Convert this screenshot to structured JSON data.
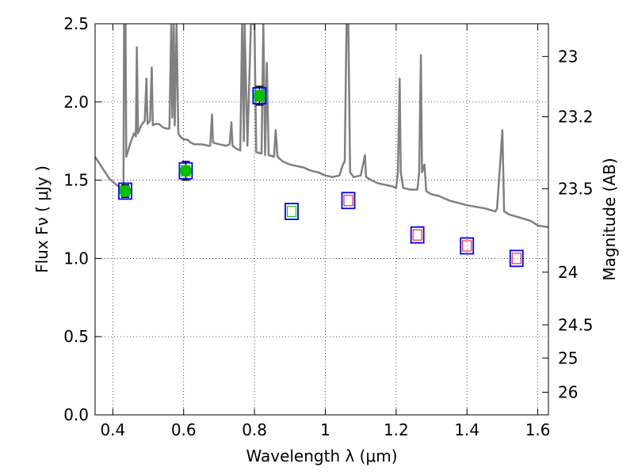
{
  "chart_data": {
    "type": "scatter",
    "title": "",
    "xlabel": "Wavelength  λ (μm)",
    "ylabel": "Flux  Fν  ( μJy )",
    "y2label": "Magnitude (AB)",
    "xlim": [
      0.35,
      1.63
    ],
    "ylim": [
      0,
      2.5
    ],
    "grid": true,
    "xticks": [
      0.4,
      0.6,
      0.8,
      1.0,
      1.2,
      1.4,
      1.6
    ],
    "xtick_labels": [
      "0.4",
      "0.6",
      "0.8",
      "1",
      "1.2",
      "1.4",
      "1.6"
    ],
    "yticks": [
      0.0,
      0.5,
      1.0,
      1.5,
      2.0,
      2.5
    ],
    "ytick_labels": [
      "0.0",
      "0.5",
      "1.0",
      "1.5",
      "2.0",
      "2.5"
    ],
    "y2ticks": [
      23,
      23.2,
      23.5,
      24,
      24.5,
      25,
      26
    ],
    "y2tick_labels": [
      "23",
      "23.2",
      "23.5",
      "24",
      "24.5",
      "25",
      "26"
    ],
    "colors": {
      "model": "#808080",
      "box": "#0000ff",
      "detection": "#00c000",
      "green_box": "#00c000",
      "red_box": "#ff0000",
      "grid": "#000000"
    },
    "model_spectrum": [
      [
        0.35,
        1.65
      ],
      [
        0.37,
        1.58
      ],
      [
        0.39,
        1.51
      ],
      [
        0.41,
        1.47
      ],
      [
        0.425,
        1.45
      ],
      [
        0.43,
        1.47
      ],
      [
        0.432,
        2.5
      ],
      [
        0.436,
        2.5
      ],
      [
        0.438,
        1.65
      ],
      [
        0.45,
        1.74
      ],
      [
        0.46,
        1.8
      ],
      [
        0.465,
        1.78
      ],
      [
        0.468,
        2.35
      ],
      [
        0.471,
        1.8
      ],
      [
        0.48,
        1.85
      ],
      [
        0.49,
        1.88
      ],
      [
        0.495,
        2.15
      ],
      [
        0.498,
        1.86
      ],
      [
        0.505,
        1.88
      ],
      [
        0.51,
        2.22
      ],
      [
        0.513,
        1.85
      ],
      [
        0.52,
        1.86
      ],
      [
        0.53,
        1.86
      ],
      [
        0.54,
        1.84
      ],
      [
        0.55,
        1.83
      ],
      [
        0.56,
        1.83
      ],
      [
        0.565,
        2.5
      ],
      [
        0.568,
        1.9
      ],
      [
        0.572,
        2.5
      ],
      [
        0.575,
        1.85
      ],
      [
        0.58,
        2.5
      ],
      [
        0.585,
        1.8
      ],
      [
        0.59,
        1.78
      ],
      [
        0.6,
        1.76
      ],
      [
        0.61,
        1.76
      ],
      [
        0.62,
        1.74
      ],
      [
        0.63,
        1.73
      ],
      [
        0.65,
        1.73
      ],
      [
        0.67,
        1.72
      ],
      [
        0.675,
        1.72
      ],
      [
        0.68,
        1.92
      ],
      [
        0.683,
        1.74
      ],
      [
        0.7,
        1.73
      ],
      [
        0.72,
        1.72
      ],
      [
        0.73,
        1.73
      ],
      [
        0.735,
        1.87
      ],
      [
        0.738,
        1.72
      ],
      [
        0.75,
        1.7
      ],
      [
        0.76,
        1.69
      ],
      [
        0.765,
        2.5
      ],
      [
        0.77,
        1.75
      ],
      [
        0.772,
        2.5
      ],
      [
        0.78,
        1.72
      ],
      [
        0.79,
        2.5
      ],
      [
        0.8,
        2.5
      ],
      [
        0.805,
        1.68
      ],
      [
        0.82,
        1.67
      ],
      [
        0.825,
        2.5
      ],
      [
        0.83,
        1.66
      ],
      [
        0.835,
        2.25
      ],
      [
        0.84,
        1.66
      ],
      [
        0.855,
        1.65
      ],
      [
        0.86,
        1.82
      ],
      [
        0.865,
        1.65
      ],
      [
        0.88,
        1.62
      ],
      [
        0.9,
        1.6
      ],
      [
        0.92,
        1.59
      ],
      [
        0.94,
        1.58
      ],
      [
        0.96,
        1.56
      ],
      [
        0.98,
        1.55
      ],
      [
        1.0,
        1.53
      ],
      [
        1.02,
        1.52
      ],
      [
        1.04,
        1.53
      ],
      [
        1.05,
        1.6
      ],
      [
        1.055,
        1.62
      ],
      [
        1.06,
        2.5
      ],
      [
        1.065,
        2.5
      ],
      [
        1.07,
        1.55
      ],
      [
        1.08,
        1.52
      ],
      [
        1.1,
        1.53
      ],
      [
        1.112,
        1.66
      ],
      [
        1.115,
        1.52
      ],
      [
        1.13,
        1.5
      ],
      [
        1.15,
        1.48
      ],
      [
        1.17,
        1.47
      ],
      [
        1.19,
        1.46
      ],
      [
        1.2,
        1.45
      ],
      [
        1.205,
        1.55
      ],
      [
        1.21,
        2.15
      ],
      [
        1.213,
        1.55
      ],
      [
        1.22,
        1.45
      ],
      [
        1.24,
        1.44
      ],
      [
        1.26,
        1.44
      ],
      [
        1.265,
        1.55
      ],
      [
        1.27,
        2.3
      ],
      [
        1.273,
        1.55
      ],
      [
        1.28,
        1.6
      ],
      [
        1.285,
        1.43
      ],
      [
        1.3,
        1.41
      ],
      [
        1.32,
        1.4
      ],
      [
        1.35,
        1.37
      ],
      [
        1.4,
        1.34
      ],
      [
        1.45,
        1.32
      ],
      [
        1.48,
        1.3
      ],
      [
        1.485,
        1.32
      ],
      [
        1.495,
        1.65
      ],
      [
        1.5,
        1.82
      ],
      [
        1.505,
        1.3
      ],
      [
        1.52,
        1.28
      ],
      [
        1.55,
        1.26
      ],
      [
        1.58,
        1.24
      ],
      [
        1.6,
        1.21
      ],
      [
        1.63,
        1.2
      ]
    ],
    "detections": [
      {
        "x": 0.435,
        "y": 1.43,
        "err": 0.04
      },
      {
        "x": 0.606,
        "y": 1.56,
        "err": 0.06
      },
      {
        "x": 0.814,
        "y": 2.04,
        "err": 0.06
      }
    ],
    "model_photometry": [
      {
        "x": 0.435,
        "y": 1.43,
        "inner": "green"
      },
      {
        "x": 0.606,
        "y": 1.56,
        "inner": "green"
      },
      {
        "x": 0.814,
        "y": 2.04,
        "inner": "green"
      },
      {
        "x": 0.905,
        "y": 1.3,
        "inner": "green"
      },
      {
        "x": 1.065,
        "y": 1.37,
        "inner": "red"
      },
      {
        "x": 1.26,
        "y": 1.15,
        "inner": "red"
      },
      {
        "x": 1.4,
        "y": 1.08,
        "inner": "red"
      },
      {
        "x": 1.54,
        "y": 1.0,
        "inner": "red"
      }
    ]
  }
}
